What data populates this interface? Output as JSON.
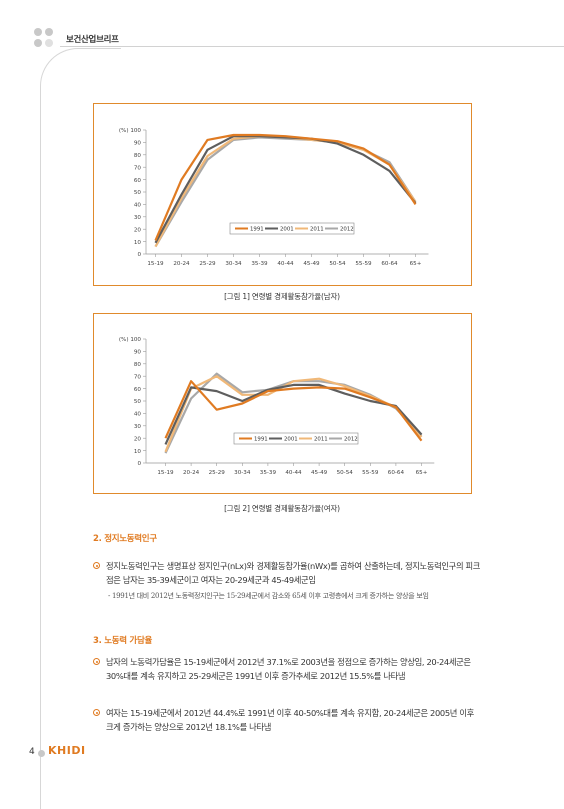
{
  "header": {
    "title": "보건산업브리프"
  },
  "chart_data": [
    {
      "type": "line",
      "caption": "[그림 1] 연령별 경제활동참가율(남자)",
      "ylabel": "(%)",
      "categories": [
        "15-19",
        "20-24",
        "25-29",
        "30-34",
        "35-39",
        "40-44",
        "45-49",
        "50-54",
        "55-59",
        "60-64",
        "65+"
      ],
      "yticks": [
        0,
        10,
        20,
        30,
        40,
        50,
        60,
        70,
        80,
        90,
        100
      ],
      "ylim": [
        0,
        100
      ],
      "legend_position": "inside-lower-center",
      "series": [
        {
          "name": "1991",
          "color": "#e07b22",
          "values": [
            11,
            60,
            92,
            96,
            96,
            95,
            93,
            91,
            85,
            72,
            40
          ]
        },
        {
          "name": "2001",
          "color": "#5e5e5e",
          "values": [
            9,
            48,
            84,
            95,
            95,
            94,
            93,
            89,
            80,
            67,
            41
          ]
        },
        {
          "name": "2011",
          "color": "#f0b878",
          "values": [
            6,
            45,
            79,
            93,
            95,
            94,
            92,
            90,
            84,
            72,
            42
          ]
        },
        {
          "name": "2012",
          "color": "#a8a8a8",
          "values": [
            6,
            42,
            76,
            92,
            94,
            93,
            92,
            90,
            84,
            74,
            42
          ]
        }
      ]
    },
    {
      "type": "line",
      "caption": "[그림 2] 연령별 경제활동참가율(여자)",
      "ylabel": "(%)",
      "categories": [
        "15-19",
        "20-24",
        "25-29",
        "30-34",
        "35-39",
        "40-44",
        "45-49",
        "50-54",
        "55-59",
        "60-64",
        "65+"
      ],
      "yticks": [
        0,
        10,
        20,
        30,
        40,
        50,
        60,
        70,
        80,
        90,
        100
      ],
      "ylim": [
        0,
        100
      ],
      "legend_position": "inside-lower-center",
      "series": [
        {
          "name": "1991",
          "color": "#e07b22",
          "values": [
            20,
            66,
            43,
            48,
            58,
            60,
            61,
            60,
            53,
            45,
            18
          ]
        },
        {
          "name": "2001",
          "color": "#5e5e5e",
          "values": [
            15,
            61,
            58,
            50,
            59,
            63,
            63,
            56,
            50,
            46,
            23
          ]
        },
        {
          "name": "2011",
          "color": "#f0b878",
          "values": [
            9,
            60,
            70,
            55,
            55,
            66,
            68,
            62,
            54,
            45,
            21
          ]
        },
        {
          "name": "2012",
          "color": "#a8a8a8",
          "values": [
            8,
            52,
            72,
            57,
            59,
            66,
            66,
            63,
            55,
            44,
            22
          ]
        }
      ]
    }
  ],
  "section2": {
    "title": "2. 정지노동력인구",
    "bullet1": "정지노동력인구는 생명표상 정지인구(nLx)와 경제활동참가율(nWx)를 곱하여 산출하는데, 정지노동력인구의 피크점은 남자는 35-39세군이고 여자는 20-29세군과 45-49세군임",
    "sub1": "- 1991년 대비 2012년 노동력정지인구는 15-29세군에서 감소와 65세 이후 고령층에서 크게 증가하는 양상을 보임"
  },
  "section3": {
    "title": "3. 노동력 가담율",
    "bullet1": "남자의 노동력가담율은 15-19세군에서 2012년 37.1%로 2003년을 정점으로 증가하는 양상임, 20-24세군은 30%대를 계속 유지하고 25-29세군은 1991년 이후 증가추세로 2012년 15.5%를 나타냄",
    "bullet2": "여자는 15-19세군에서 2012년 44.4%로 1991년 이후 40-50%대를 계속 유지함, 20-24세군은 2005년 이후 크게 증가하는 양상으로 2012년 18.1%를 나타냄"
  },
  "footer": {
    "page_number": "4",
    "logo": "KHIDI"
  }
}
